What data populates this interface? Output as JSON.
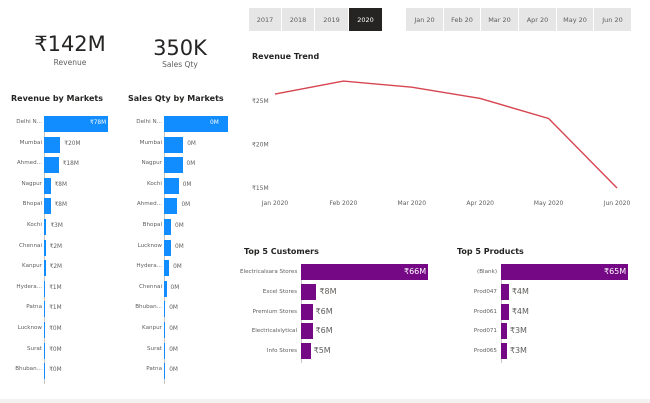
{
  "year_slicer": {
    "items": [
      {
        "label": "2017",
        "selected": false
      },
      {
        "label": "2018",
        "selected": false
      },
      {
        "label": "2019",
        "selected": false
      },
      {
        "label": "2020",
        "selected": true
      }
    ]
  },
  "month_slicer": {
    "items": [
      {
        "label": "Jan 20"
      },
      {
        "label": "Feb 20"
      },
      {
        "label": "Mar 20"
      },
      {
        "label": "Apr 20"
      },
      {
        "label": "May 20"
      },
      {
        "label": "Jun 20"
      }
    ]
  },
  "kpis": {
    "revenue": {
      "value": "₹142M",
      "label": "Revenue"
    },
    "sales_qty": {
      "value": "350K",
      "label": "Sales Qty"
    }
  },
  "revenue_by_markets": {
    "title": "Revenue by Markets",
    "color": "#118dff",
    "rows": [
      {
        "label": "Delhi N...",
        "value": 78,
        "value_label": "₹78M"
      },
      {
        "label": "Mumbai",
        "value": 20,
        "value_label": "₹20M"
      },
      {
        "label": "Ahmed...",
        "value": 18,
        "value_label": "₹18M"
      },
      {
        "label": "Nagpur",
        "value": 8,
        "value_label": "₹8M"
      },
      {
        "label": "Bhopal",
        "value": 8,
        "value_label": "₹8M"
      },
      {
        "label": "Kochi",
        "value": 3,
        "value_label": "₹3M"
      },
      {
        "label": "Chennai",
        "value": 2,
        "value_label": "₹2M"
      },
      {
        "label": "Kanpur",
        "value": 2,
        "value_label": "₹2M"
      },
      {
        "label": "Hydera...",
        "value": 1,
        "value_label": "₹1M"
      },
      {
        "label": "Patna",
        "value": 1,
        "value_label": "₹1M"
      },
      {
        "label": "Lucknow",
        "value": 0,
        "value_label": "₹0M"
      },
      {
        "label": "Surat",
        "value": 0,
        "value_label": "₹0M"
      },
      {
        "label": "Bhuban...",
        "value": 0,
        "value_label": "₹0M"
      }
    ]
  },
  "sales_qty_by_markets": {
    "title": "Sales Qty by Markets",
    "color": "#118dff",
    "rows": [
      {
        "label": "Delhi N...",
        "value": 100,
        "value_label": "0M"
      },
      {
        "label": "Mumbai",
        "value": 30,
        "value_label": "0M"
      },
      {
        "label": "Nagpur",
        "value": 29,
        "value_label": "0M"
      },
      {
        "label": "Kochi",
        "value": 23,
        "value_label": "0M"
      },
      {
        "label": "Ahmed...",
        "value": 21,
        "value_label": "0M"
      },
      {
        "label": "Bhopal",
        "value": 11,
        "value_label": "0M"
      },
      {
        "label": "Lucknow",
        "value": 11,
        "value_label": "0M"
      },
      {
        "label": "Hydera...",
        "value": 8,
        "value_label": "0M"
      },
      {
        "label": "Chennai",
        "value": 4,
        "value_label": "0M"
      },
      {
        "label": "Bhuban...",
        "value": 1,
        "value_label": "0M"
      },
      {
        "label": "Kanpur",
        "value": 1,
        "value_label": "0M"
      },
      {
        "label": "Surat",
        "value": 1,
        "value_label": "0M"
      },
      {
        "label": "Patna",
        "value": 0,
        "value_label": "0M"
      }
    ]
  },
  "chart_data": [
    {
      "type": "line",
      "title": "Revenue Trend",
      "x": [
        "Jan 2020",
        "Feb 2020",
        "Mar 2020",
        "Apr 2020",
        "May 2020",
        "Jun 2020"
      ],
      "series": [
        {
          "values": [
            25.8,
            27.3,
            26.6,
            25.3,
            23.0,
            15.0
          ]
        }
      ],
      "y_ticks": [
        "₹25M",
        "₹20M",
        "₹15M"
      ],
      "ylim": [
        15,
        28
      ],
      "color": "#d64550"
    },
    {
      "type": "bar",
      "title": "Top 5 Customers",
      "categories": [
        "Electricalsara Stores",
        "Excel Stores",
        "Premium Stores",
        "Electricalslytical",
        "Info Stores"
      ],
      "values": [
        66,
        8,
        6,
        6,
        5
      ],
      "value_labels": [
        "₹66M",
        "₹8M",
        "₹6M",
        "₹6M",
        "₹5M"
      ],
      "color": "#750985"
    },
    {
      "type": "bar",
      "title": "Top 5 Products",
      "categories": [
        "(Blank)",
        "Prod047",
        "Prod061",
        "Prod071",
        "Prod065"
      ],
      "values": [
        65,
        4,
        4,
        3,
        3
      ],
      "value_labels": [
        "₹65M",
        "₹4M",
        "₹4M",
        "₹3M",
        "₹3M"
      ],
      "color": "#750985"
    }
  ]
}
